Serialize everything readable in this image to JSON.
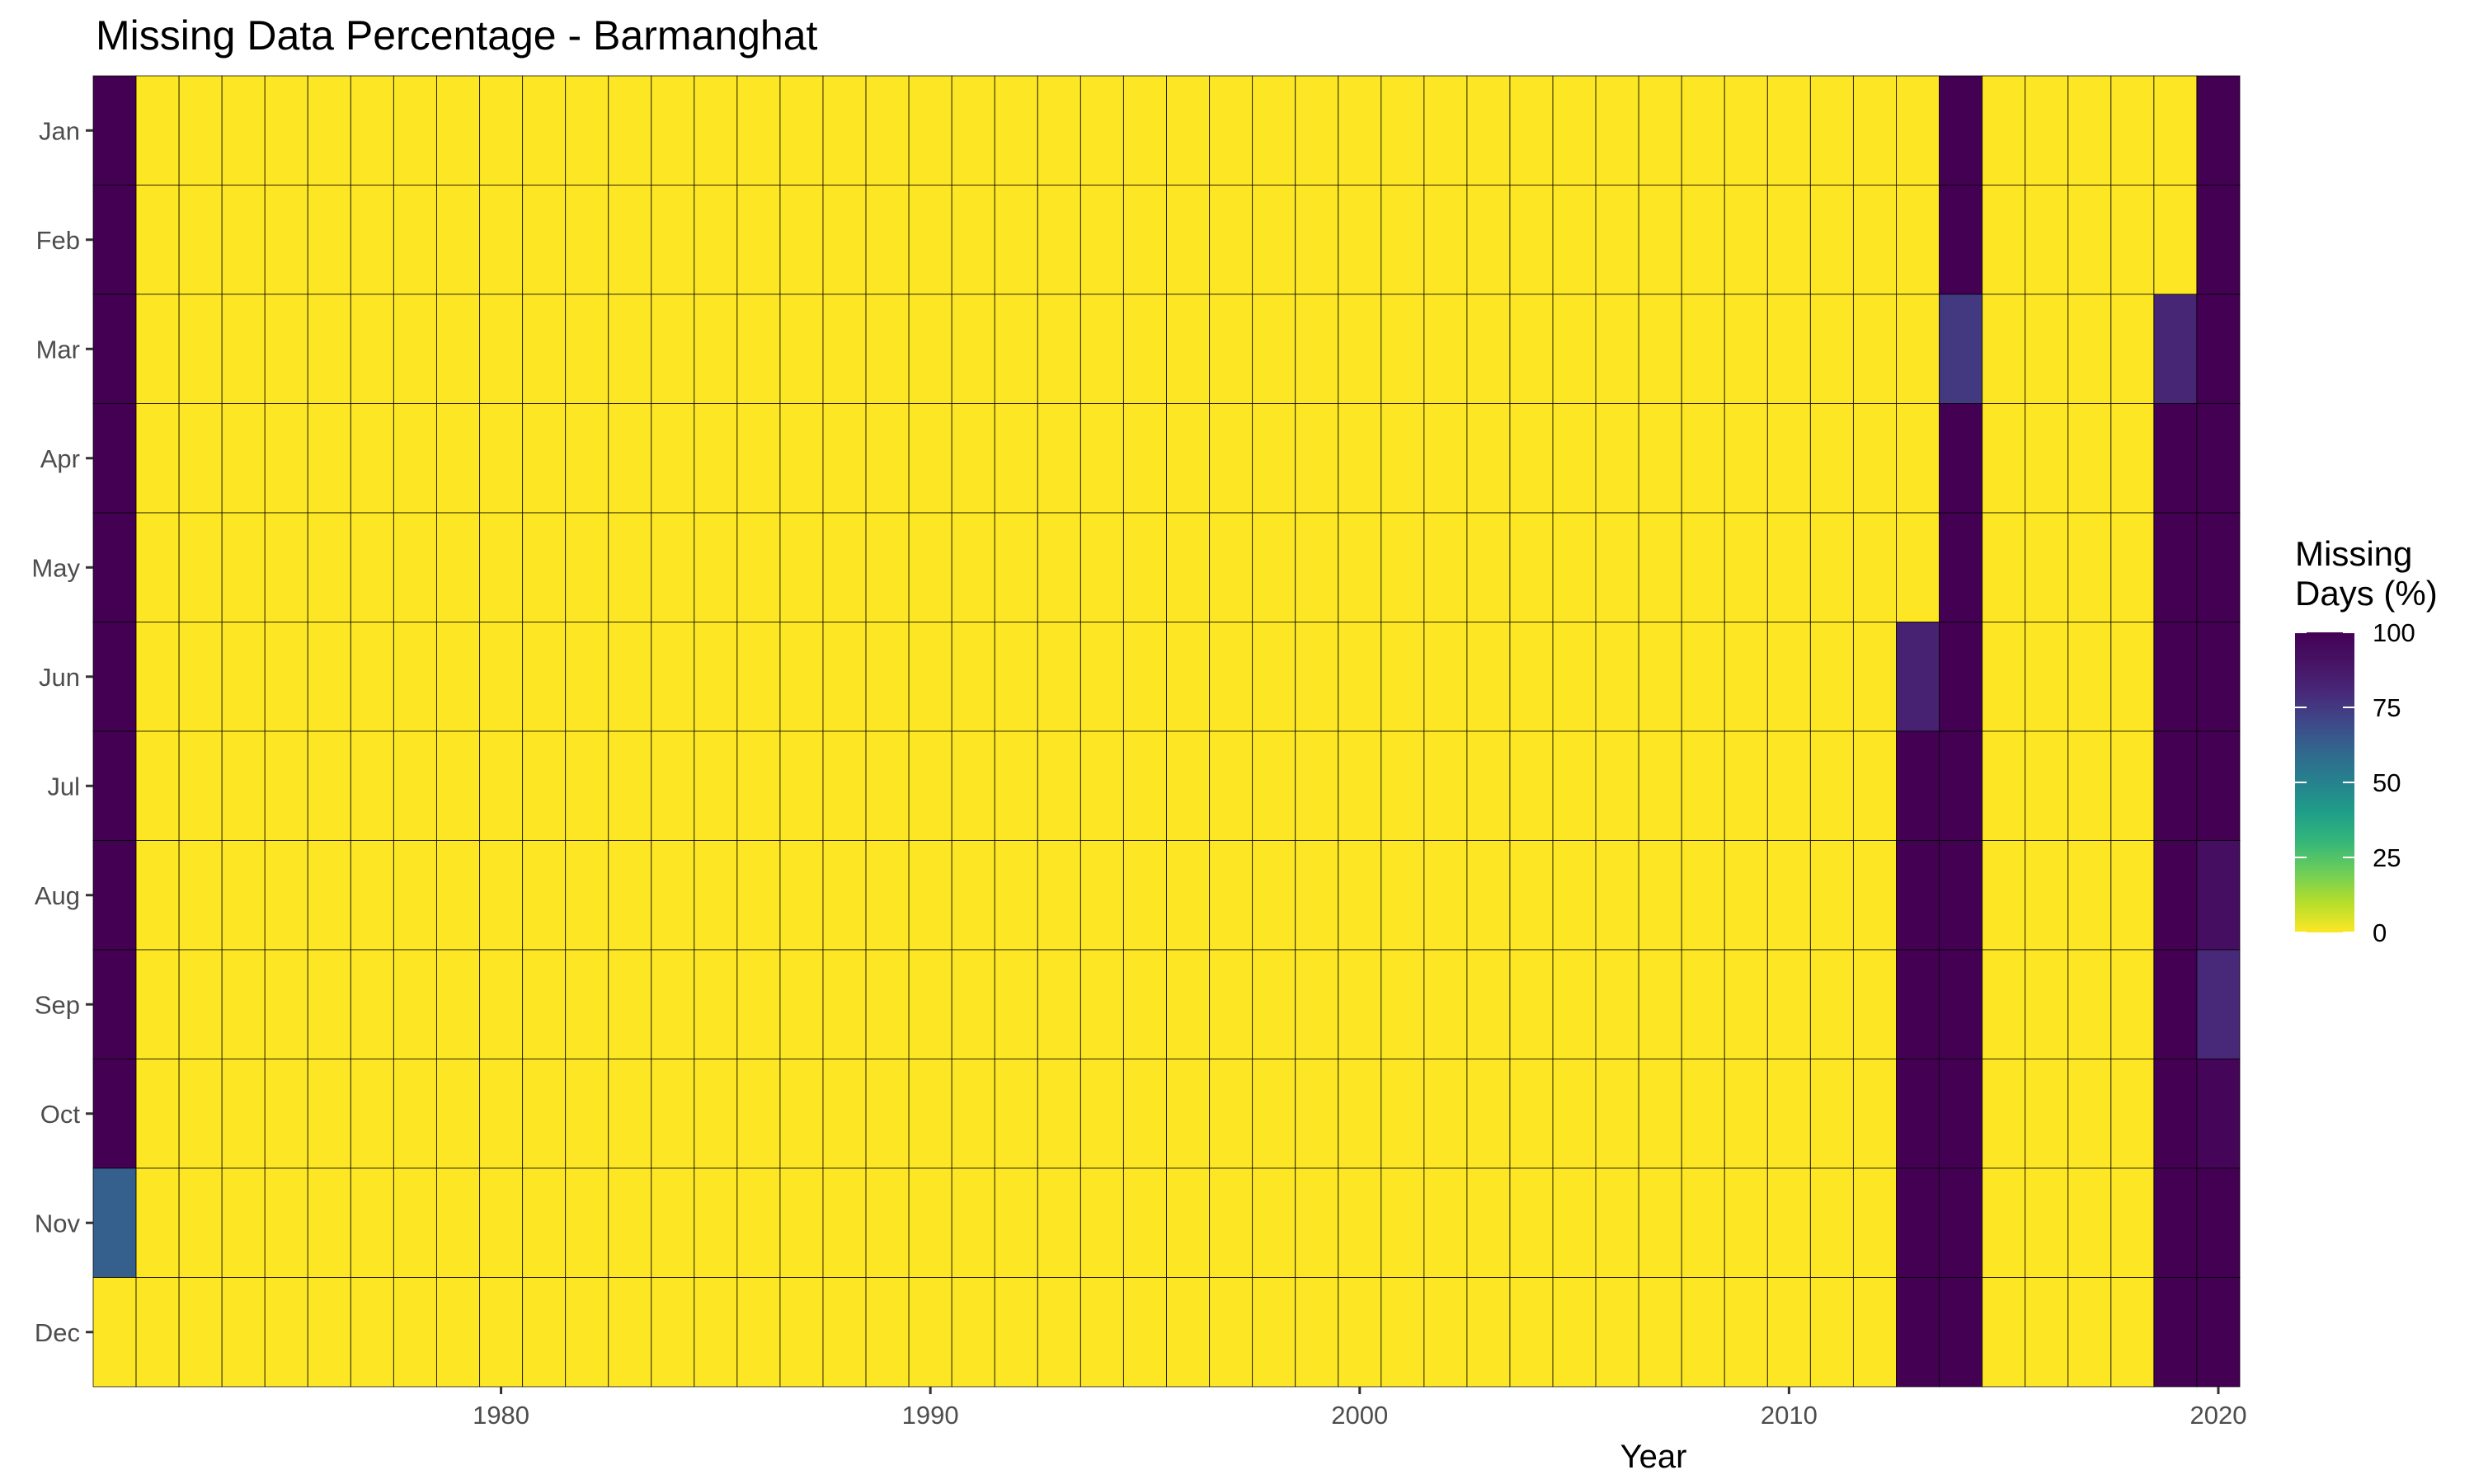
{
  "chart_data": {
    "type": "heatmap",
    "title": "Missing Data Percentage - Barmanghat",
    "xlabel": "Year",
    "ylabel": "",
    "legend_title": [
      "Missing",
      "Days (%)"
    ],
    "legend_position": "right",
    "colorscale": "viridis-reversed",
    "value_range": [
      0,
      100
    ],
    "legend_ticks": [
      0,
      25,
      50,
      75,
      100
    ],
    "x_range": [
      1971,
      2020
    ],
    "x_ticks": [
      1980,
      1990,
      2000,
      2010,
      2020
    ],
    "months": [
      "Jan",
      "Feb",
      "Mar",
      "Apr",
      "May",
      "Jun",
      "Jul",
      "Aug",
      "Sep",
      "Oct",
      "Nov",
      "Dec"
    ],
    "default_value": 0,
    "nonzero_cells": [
      {
        "year": 1971,
        "month": "Jan",
        "value": 100
      },
      {
        "year": 1971,
        "month": "Feb",
        "value": 100
      },
      {
        "year": 1971,
        "month": "Mar",
        "value": 100
      },
      {
        "year": 1971,
        "month": "Apr",
        "value": 100
      },
      {
        "year": 1971,
        "month": "May",
        "value": 100
      },
      {
        "year": 1971,
        "month": "Jun",
        "value": 100
      },
      {
        "year": 1971,
        "month": "Jul",
        "value": 100
      },
      {
        "year": 1971,
        "month": "Aug",
        "value": 100
      },
      {
        "year": 1971,
        "month": "Sep",
        "value": 100
      },
      {
        "year": 1971,
        "month": "Oct",
        "value": 100
      },
      {
        "year": 1971,
        "month": "Nov",
        "value": 63
      },
      {
        "year": 2013,
        "month": "Jun",
        "value": 83
      },
      {
        "year": 2013,
        "month": "Jul",
        "value": 100
      },
      {
        "year": 2013,
        "month": "Aug",
        "value": 100
      },
      {
        "year": 2013,
        "month": "Sep",
        "value": 100
      },
      {
        "year": 2013,
        "month": "Oct",
        "value": 100
      },
      {
        "year": 2013,
        "month": "Nov",
        "value": 100
      },
      {
        "year": 2013,
        "month": "Dec",
        "value": 100
      },
      {
        "year": 2014,
        "month": "Jan",
        "value": 100
      },
      {
        "year": 2014,
        "month": "Feb",
        "value": 100
      },
      {
        "year": 2014,
        "month": "Mar",
        "value": 75
      },
      {
        "year": 2014,
        "month": "Apr",
        "value": 100
      },
      {
        "year": 2014,
        "month": "May",
        "value": 100
      },
      {
        "year": 2014,
        "month": "Jun",
        "value": 100
      },
      {
        "year": 2014,
        "month": "Jul",
        "value": 100
      },
      {
        "year": 2014,
        "month": "Aug",
        "value": 100
      },
      {
        "year": 2014,
        "month": "Sep",
        "value": 100
      },
      {
        "year": 2014,
        "month": "Oct",
        "value": 100
      },
      {
        "year": 2014,
        "month": "Nov",
        "value": 100
      },
      {
        "year": 2014,
        "month": "Dec",
        "value": 100
      },
      {
        "year": 2019,
        "month": "Mar",
        "value": 81
      },
      {
        "year": 2019,
        "month": "Apr",
        "value": 100
      },
      {
        "year": 2019,
        "month": "May",
        "value": 100
      },
      {
        "year": 2019,
        "month": "Jun",
        "value": 100
      },
      {
        "year": 2019,
        "month": "Jul",
        "value": 100
      },
      {
        "year": 2019,
        "month": "Aug",
        "value": 100
      },
      {
        "year": 2019,
        "month": "Sep",
        "value": 100
      },
      {
        "year": 2019,
        "month": "Oct",
        "value": 100
      },
      {
        "year": 2019,
        "month": "Nov",
        "value": 100
      },
      {
        "year": 2019,
        "month": "Dec",
        "value": 100
      },
      {
        "year": 2020,
        "month": "Jan",
        "value": 100
      },
      {
        "year": 2020,
        "month": "Feb",
        "value": 100
      },
      {
        "year": 2020,
        "month": "Mar",
        "value": 100
      },
      {
        "year": 2020,
        "month": "Apr",
        "value": 100
      },
      {
        "year": 2020,
        "month": "May",
        "value": 100
      },
      {
        "year": 2020,
        "month": "Jun",
        "value": 100
      },
      {
        "year": 2020,
        "month": "Jul",
        "value": 100
      },
      {
        "year": 2020,
        "month": "Aug",
        "value": 93
      },
      {
        "year": 2020,
        "month": "Sep",
        "value": 80
      },
      {
        "year": 2020,
        "month": "Oct",
        "value": 97
      },
      {
        "year": 2020,
        "month": "Nov",
        "value": 100
      },
      {
        "year": 2020,
        "month": "Dec",
        "value": 100
      }
    ]
  }
}
